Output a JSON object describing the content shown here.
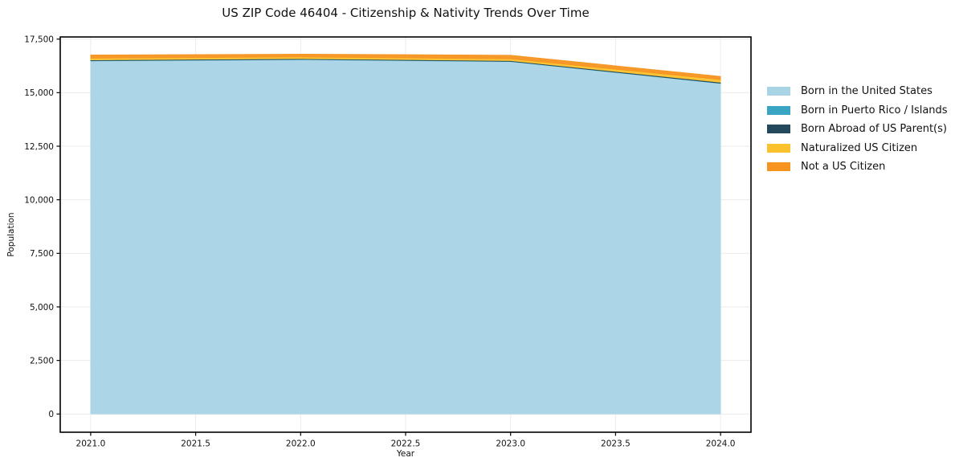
{
  "chart_data": {
    "type": "area",
    "stacked": true,
    "title": "US ZIP Code 46404 - Citizenship & Nativity Trends Over Time",
    "xlabel": "Year",
    "ylabel": "Population",
    "x": [
      2021,
      2022,
      2023,
      2024
    ],
    "xticks": [
      2021.0,
      2021.5,
      2022.0,
      2022.5,
      2023.0,
      2023.5,
      2024.0
    ],
    "xtick_labels": [
      "2021.0",
      "2021.5",
      "2022.0",
      "2022.5",
      "2023.0",
      "2023.5",
      "2024.0"
    ],
    "yticks": [
      0,
      2500,
      5000,
      7500,
      10000,
      12500,
      15000,
      17500
    ],
    "ytick_labels": [
      "0",
      "2,500",
      "5,000",
      "7,500",
      "10,000",
      "12,500",
      "15,000",
      "17,500"
    ],
    "ylim": [
      0,
      17500
    ],
    "grid": true,
    "legend_position": "right",
    "series": [
      {
        "name": "Born in the United States",
        "color": "#a8d4e6",
        "values": [
          16480,
          16540,
          16450,
          15430
        ]
      },
      {
        "name": "Born in Puerto Rico / Islands",
        "color": "#3aa5c2",
        "values": [
          15,
          15,
          10,
          10
        ]
      },
      {
        "name": "Born Abroad of US Parent(s)",
        "color": "#24485c",
        "values": [
          30,
          30,
          35,
          40
        ]
      },
      {
        "name": "Naturalized US Citizen",
        "color": "#fcc22d",
        "values": [
          80,
          80,
          80,
          130
        ]
      },
      {
        "name": "Not a US Citizen",
        "color": "#f6941f",
        "values": [
          155,
          135,
          175,
          150
        ]
      }
    ],
    "colors": {
      "grid": "#ebebeb",
      "spine": "#000000",
      "text": "#111111",
      "background": "#ffffff"
    }
  }
}
